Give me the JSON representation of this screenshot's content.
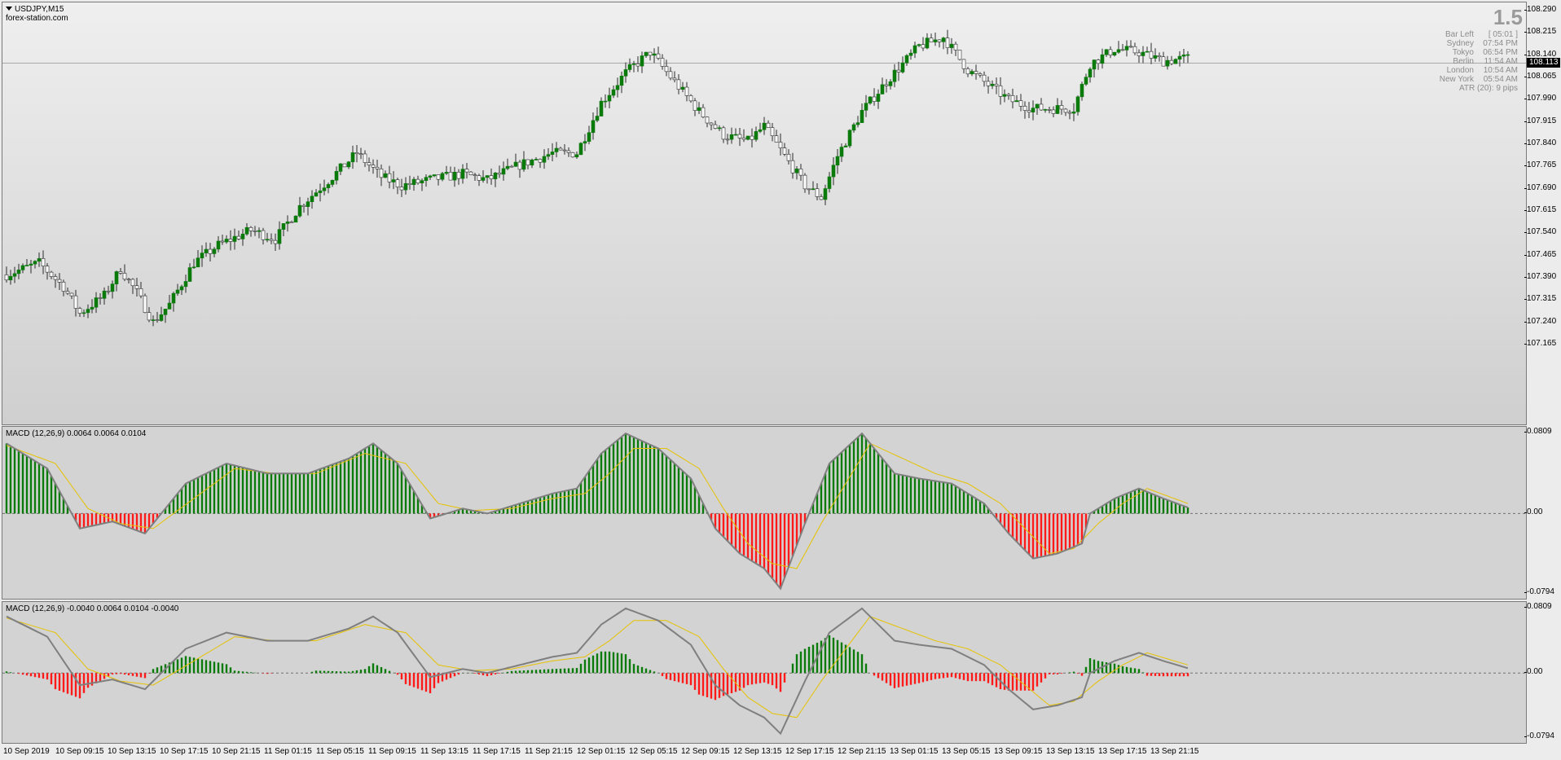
{
  "chart": {
    "symbol_title": "USDJPY,M15",
    "source": "forex-station.com",
    "colors": {
      "bull": "#0a7a0a",
      "bear": "#ff1a1a",
      "wick": "#2b2b2b",
      "signal": "#e6c200",
      "macd_line": "#7f7f7f"
    }
  },
  "info": {
    "big_value": "1.5",
    "rows": [
      {
        "label": "Bar Left",
        "value": "[ 05:01 ]"
      },
      {
        "label": "Sydney",
        "value": "07:54 PM"
      },
      {
        "label": "Tokyo",
        "value": "06:54 PM"
      },
      {
        "label": "Berlin",
        "value": "11:54 AM"
      },
      {
        "label": "London",
        "value": "10:54 AM"
      },
      {
        "label": "New York",
        "value": "05:54 AM"
      }
    ],
    "atr": "ATR (20): 9 pips"
  },
  "current_price": "108.113",
  "price_axis": [
    "108.290",
    "108.215",
    "108.140",
    "108.065",
    "107.990",
    "107.915",
    "107.840",
    "107.765",
    "107.690",
    "107.615",
    "107.540",
    "107.465",
    "107.390",
    "107.315",
    "107.240",
    "107.165"
  ],
  "macd1": {
    "label": "MACD (12,26,9) 0.0064 0.0064 0.0104",
    "axis": [
      "0.0809",
      "0.00",
      "-0.0794"
    ]
  },
  "macd2": {
    "label": "MACD (12,26,9) -0.0040 0.0064 0.0104 -0.0040",
    "axis": [
      "0.0809",
      "0.00",
      "-0.0794"
    ]
  },
  "time_axis": [
    "10 Sep 2019",
    "10 Sep 09:15",
    "10 Sep 13:15",
    "10 Sep 17:15",
    "10 Sep 21:15",
    "11 Sep 01:15",
    "11 Sep 05:15",
    "11 Sep 09:15",
    "11 Sep 13:15",
    "11 Sep 17:15",
    "11 Sep 21:15",
    "12 Sep 01:15",
    "12 Sep 05:15",
    "12 Sep 09:15",
    "12 Sep 13:15",
    "12 Sep 17:15",
    "12 Sep 21:15",
    "13 Sep 01:15",
    "13 Sep 05:15",
    "13 Sep 09:15",
    "13 Sep 13:15",
    "13 Sep 17:15",
    "13 Sep 21:15"
  ],
  "chart_data": {
    "type": "candlestick",
    "price_ylim": [
      107.165,
      108.29
    ],
    "macd_ylim": [
      -0.0794,
      0.0809
    ],
    "price_path": [
      [
        0,
        107.4
      ],
      [
        8,
        107.44
      ],
      [
        14,
        107.36
      ],
      [
        18,
        107.27
      ],
      [
        24,
        107.33
      ],
      [
        28,
        107.42
      ],
      [
        32,
        107.34
      ],
      [
        36,
        107.24
      ],
      [
        40,
        107.3
      ],
      [
        46,
        107.44
      ],
      [
        52,
        107.5
      ],
      [
        60,
        107.55
      ],
      [
        66,
        107.52
      ],
      [
        72,
        107.63
      ],
      [
        80,
        107.73
      ],
      [
        86,
        107.81
      ],
      [
        92,
        107.73
      ],
      [
        97,
        107.7
      ],
      [
        104,
        107.72
      ],
      [
        112,
        107.74
      ],
      [
        118,
        107.72
      ],
      [
        126,
        107.77
      ],
      [
        134,
        107.81
      ],
      [
        140,
        107.81
      ],
      [
        146,
        107.98
      ],
      [
        152,
        108.08
      ],
      [
        158,
        108.15
      ],
      [
        164,
        108.05
      ],
      [
        170,
        107.95
      ],
      [
        176,
        107.87
      ],
      [
        182,
        107.85
      ],
      [
        186,
        107.9
      ],
      [
        190,
        107.82
      ],
      [
        196,
        107.7
      ],
      [
        200,
        107.66
      ],
      [
        204,
        107.8
      ],
      [
        210,
        107.95
      ],
      [
        216,
        108.05
      ],
      [
        224,
        108.17
      ],
      [
        230,
        108.2
      ],
      [
        236,
        108.09
      ],
      [
        240,
        108.05
      ],
      [
        246,
        107.99
      ],
      [
        252,
        107.96
      ],
      [
        257,
        107.96
      ],
      [
        262,
        107.96
      ],
      [
        266,
        108.11
      ],
      [
        272,
        108.16
      ],
      [
        278,
        108.15
      ],
      [
        284,
        108.12
      ],
      [
        290,
        108.13
      ]
    ],
    "macd_path": [
      [
        0,
        0.07
      ],
      [
        10,
        0.045
      ],
      [
        18,
        -0.015
      ],
      [
        26,
        -0.008
      ],
      [
        34,
        -0.02
      ],
      [
        44,
        0.03
      ],
      [
        54,
        0.05
      ],
      [
        64,
        0.04
      ],
      [
        74,
        0.04
      ],
      [
        84,
        0.055
      ],
      [
        90,
        0.07
      ],
      [
        96,
        0.05
      ],
      [
        104,
        -0.005
      ],
      [
        112,
        0.005
      ],
      [
        118,
        0.0
      ],
      [
        126,
        0.01
      ],
      [
        134,
        0.02
      ],
      [
        140,
        0.025
      ],
      [
        146,
        0.06
      ],
      [
        152,
        0.08
      ],
      [
        160,
        0.065
      ],
      [
        168,
        0.035
      ],
      [
        174,
        -0.015
      ],
      [
        180,
        -0.04
      ],
      [
        186,
        -0.055
      ],
      [
        190,
        -0.075
      ],
      [
        196,
        -0.01
      ],
      [
        202,
        0.05
      ],
      [
        210,
        0.08
      ],
      [
        218,
        0.04
      ],
      [
        224,
        0.035
      ],
      [
        232,
        0.03
      ],
      [
        240,
        0.01
      ],
      [
        246,
        -0.02
      ],
      [
        252,
        -0.045
      ],
      [
        258,
        -0.04
      ],
      [
        264,
        -0.03
      ],
      [
        266,
        0.0
      ],
      [
        272,
        0.015
      ],
      [
        278,
        0.025
      ],
      [
        284,
        0.015
      ],
      [
        290,
        0.006
      ]
    ],
    "signal_path": [
      [
        0,
        0.068
      ],
      [
        12,
        0.05
      ],
      [
        20,
        0.005
      ],
      [
        28,
        -0.01
      ],
      [
        36,
        -0.015
      ],
      [
        46,
        0.015
      ],
      [
        56,
        0.045
      ],
      [
        66,
        0.04
      ],
      [
        76,
        0.04
      ],
      [
        88,
        0.06
      ],
      [
        98,
        0.05
      ],
      [
        106,
        0.01
      ],
      [
        114,
        0.003
      ],
      [
        124,
        0.005
      ],
      [
        134,
        0.015
      ],
      [
        142,
        0.02
      ],
      [
        148,
        0.04
      ],
      [
        154,
        0.065
      ],
      [
        162,
        0.065
      ],
      [
        170,
        0.045
      ],
      [
        176,
        0.005
      ],
      [
        182,
        -0.03
      ],
      [
        188,
        -0.05
      ],
      [
        194,
        -0.055
      ],
      [
        200,
        -0.01
      ],
      [
        206,
        0.03
      ],
      [
        212,
        0.07
      ],
      [
        220,
        0.055
      ],
      [
        228,
        0.04
      ],
      [
        236,
        0.03
      ],
      [
        244,
        0.01
      ],
      [
        250,
        -0.015
      ],
      [
        256,
        -0.04
      ],
      [
        262,
        -0.035
      ],
      [
        268,
        -0.01
      ],
      [
        274,
        0.01
      ],
      [
        280,
        0.025
      ],
      [
        290,
        0.01
      ]
    ]
  }
}
